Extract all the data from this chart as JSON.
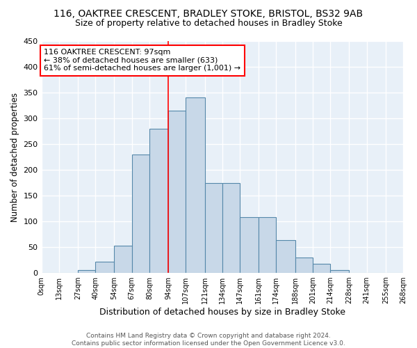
{
  "title1": "116, OAKTREE CRESCENT, BRADLEY STOKE, BRISTOL, BS32 9AB",
  "title2": "Size of property relative to detached houses in Bradley Stoke",
  "xlabel": "Distribution of detached houses by size in Bradley Stoke",
  "ylabel": "Number of detached properties",
  "bin_labels": [
    "0sqm",
    "13sqm",
    "27sqm",
    "40sqm",
    "54sqm",
    "67sqm",
    "80sqm",
    "94sqm",
    "107sqm",
    "121sqm",
    "134sqm",
    "147sqm",
    "161sqm",
    "174sqm",
    "188sqm",
    "201sqm",
    "214sqm",
    "228sqm",
    "241sqm",
    "255sqm",
    "268sqm"
  ],
  "bin_edges": [
    0,
    13,
    27,
    40,
    54,
    67,
    80,
    94,
    107,
    121,
    134,
    147,
    161,
    174,
    188,
    201,
    214,
    228,
    241,
    255,
    268
  ],
  "bar_heights": [
    0,
    0,
    5,
    22,
    53,
    230,
    280,
    315,
    340,
    175,
    175,
    108,
    108,
    63,
    30,
    18,
    5,
    0,
    0,
    0
  ],
  "bar_color": "#c8d8e8",
  "bar_edge_color": "#5588aa",
  "bar_edge_width": 0.8,
  "vline_x": 94,
  "vline_color": "red",
  "annotation_text": "116 OAKTREE CRESCENT: 97sqm\n← 38% of detached houses are smaller (633)\n61% of semi-detached houses are larger (1,001) →",
  "annotation_box_color": "white",
  "annotation_box_edgecolor": "red",
  "annotation_fontsize": 8,
  "ylim": [
    0,
    450
  ],
  "yticks": [
    0,
    50,
    100,
    150,
    200,
    250,
    300,
    350,
    400,
    450
  ],
  "bg_color": "#e8f0f8",
  "grid_color": "white",
  "footnote": "Contains HM Land Registry data © Crown copyright and database right 2024.\nContains public sector information licensed under the Open Government Licence v3.0.",
  "title1_fontsize": 10,
  "title2_fontsize": 9,
  "xlabel_fontsize": 9,
  "ylabel_fontsize": 8.5
}
